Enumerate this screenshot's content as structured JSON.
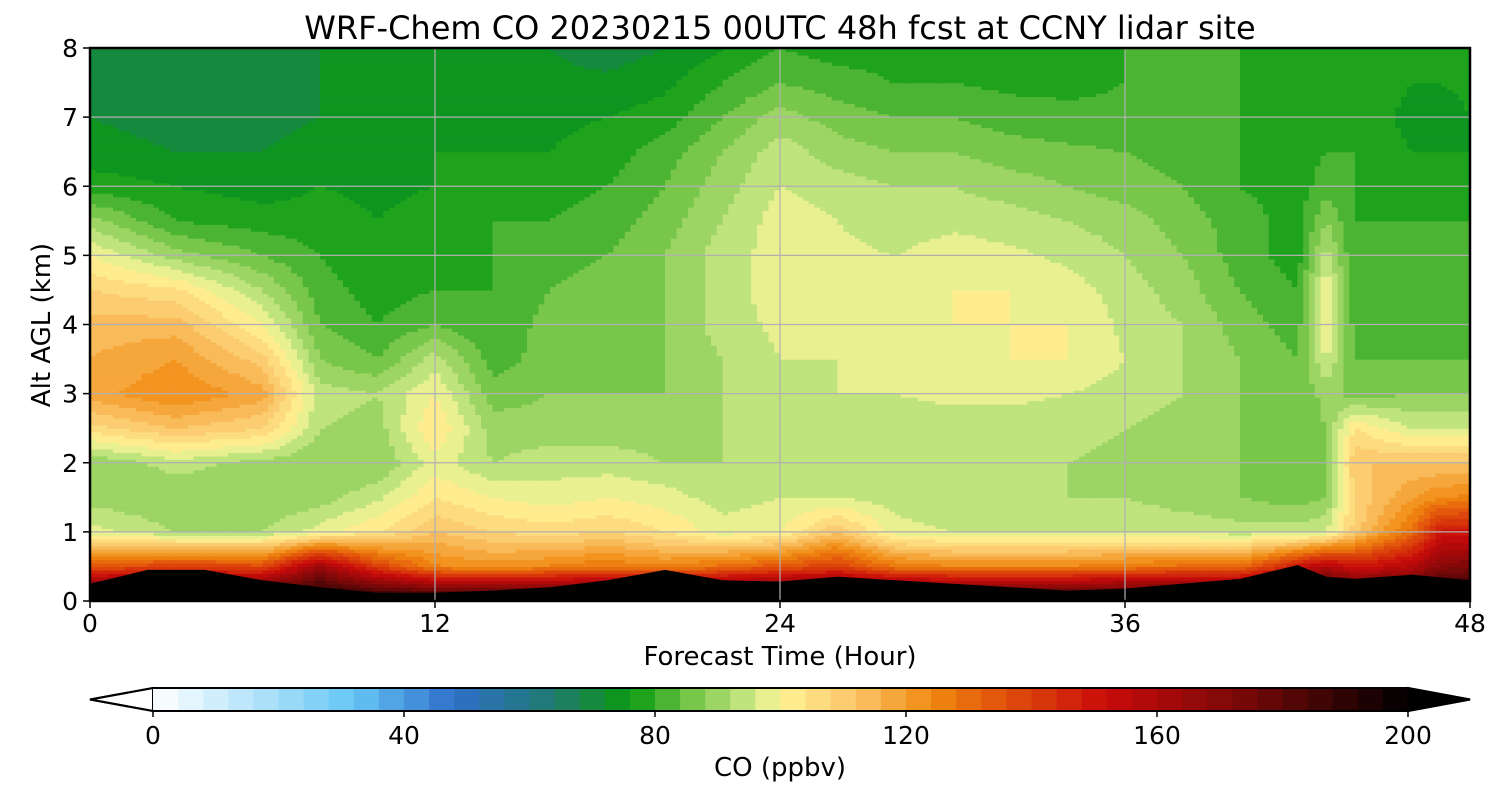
{
  "chart_data": {
    "type": "heatmap",
    "title": "WRF-Chem CO  20230215 00UTC 48h fcst at CCNY lidar site",
    "xlabel": "Forecast Time (Hour)",
    "ylabel": "Alt AGL (km)",
    "xlim": [
      0,
      48
    ],
    "ylim": [
      0,
      8
    ],
    "x_ticks": [
      "0",
      "12",
      "24",
      "36",
      "48"
    ],
    "x_tick_values": [
      0,
      12,
      24,
      36,
      48
    ],
    "y_ticks": [
      "0",
      "1",
      "2",
      "3",
      "4",
      "5",
      "6",
      "7",
      "8"
    ],
    "y_tick_values": [
      0,
      1,
      2,
      3,
      4,
      5,
      6,
      7,
      8
    ],
    "grid": true,
    "colorbar": {
      "label": "CO  (ppbv)",
      "min": 0,
      "max": 200,
      "ticks": [
        "0",
        "40",
        "80",
        "120",
        "160",
        "200"
      ],
      "tick_values": [
        0,
        40,
        80,
        120,
        160,
        200
      ],
      "extend": "both",
      "colors": [
        "#ffffff",
        "#b6e4fa",
        "#66c6f5",
        "#2f6fc9",
        "#1f7a6e",
        "#0a9a10",
        "#78c64a",
        "#d2eb8a",
        "#fff495",
        "#fbc468",
        "#f08a10",
        "#e04e0a",
        "#c80a0a",
        "#6e0808",
        "#000000"
      ],
      "color_stops": [
        0,
        16,
        32,
        48,
        64,
        76,
        86,
        96,
        100,
        112,
        124,
        136,
        152,
        176,
        200
      ]
    },
    "surface_layer_top_km": [
      [
        0,
        0.25
      ],
      [
        2,
        0.45
      ],
      [
        4,
        0.45
      ],
      [
        6,
        0.3
      ],
      [
        8,
        0.2
      ],
      [
        10,
        0.12
      ],
      [
        12,
        0.12
      ],
      [
        14,
        0.15
      ],
      [
        16,
        0.2
      ],
      [
        18,
        0.3
      ],
      [
        20,
        0.45
      ],
      [
        22,
        0.3
      ],
      [
        24,
        0.28
      ],
      [
        26,
        0.35
      ],
      [
        28,
        0.3
      ],
      [
        30,
        0.25
      ],
      [
        32,
        0.2
      ],
      [
        34,
        0.15
      ],
      [
        36,
        0.18
      ],
      [
        38,
        0.25
      ],
      [
        40,
        0.32
      ],
      [
        42,
        0.52
      ],
      [
        43,
        0.35
      ],
      [
        44,
        0.32
      ],
      [
        46,
        0.38
      ],
      [
        48,
        0.3
      ]
    ],
    "z_km": [
      0.0,
      0.5,
      1.0,
      1.5,
      2.0,
      2.5,
      3.0,
      3.5,
      4.0,
      4.5,
      5.0,
      5.5,
      6.0,
      6.5,
      7.0,
      7.5,
      8.0
    ],
    "series": [
      {
        "hour": 0,
        "co_ppbv": [
          200,
          135,
          98,
          90,
          88,
          106,
          118,
          116,
          114,
          108,
          100,
          90,
          78,
          74,
          72,
          72,
          72
        ]
      },
      {
        "hour": 3,
        "co_ppbv": [
          200,
          140,
          92,
          88,
          94,
          112,
          124,
          120,
          114,
          105,
          90,
          80,
          76,
          72,
          70,
          70,
          70
        ]
      },
      {
        "hour": 6,
        "co_ppbv": [
          200,
          138,
          92,
          88,
          90,
          108,
          118,
          110,
          100,
          92,
          84,
          78,
          74,
          72,
          70,
          70,
          70
        ]
      },
      {
        "hour": 8,
        "co_ppbv": [
          200,
          165,
          98,
          90,
          88,
          92,
          94,
          88,
          84,
          82,
          80,
          78,
          76,
          74,
          72,
          72,
          72
        ]
      },
      {
        "hour": 10,
        "co_ppbv": [
          200,
          140,
          104,
          95,
          88,
          90,
          92,
          84,
          80,
          78,
          76,
          76,
          75,
          74,
          73,
          73,
          73
        ]
      },
      {
        "hour": 12,
        "co_ppbv": [
          200,
          125,
          112,
          104,
          98,
          104,
          100,
          94,
          84,
          80,
          78,
          78,
          76,
          76,
          76,
          76,
          76
        ]
      },
      {
        "hour": 14,
        "co_ppbv": [
          200,
          122,
          108,
          100,
          92,
          90,
          86,
          82,
          80,
          80,
          80,
          80,
          78,
          76,
          75,
          74,
          74
        ]
      },
      {
        "hour": 16,
        "co_ppbv": [
          200,
          125,
          106,
          98,
          94,
          90,
          88,
          86,
          86,
          84,
          82,
          80,
          78,
          76,
          75,
          73,
          72
        ]
      },
      {
        "hour": 18,
        "co_ppbv": [
          200,
          128,
          108,
          100,
          94,
          90,
          88,
          86,
          86,
          86,
          84,
          82,
          80,
          78,
          76,
          73,
          70
        ]
      },
      {
        "hour": 20,
        "co_ppbv": [
          200,
          125,
          104,
          98,
          92,
          90,
          88,
          88,
          88,
          88,
          88,
          86,
          84,
          82,
          78,
          75,
          72
        ]
      },
      {
        "hour": 22,
        "co_ppbv": [
          200,
          130,
          98,
          94,
          92,
          92,
          92,
          92,
          94,
          94,
          94,
          92,
          90,
          88,
          84,
          80,
          76
        ]
      },
      {
        "hour": 24,
        "co_ppbv": [
          200,
          135,
          100,
          96,
          92,
          94,
          95,
          96,
          97,
          98,
          98,
          98,
          96,
          94,
          90,
          84,
          80
        ]
      },
      {
        "hour": 26,
        "co_ppbv": [
          200,
          140,
          112,
          96,
          92,
          94,
          96,
          96,
          97,
          97,
          97,
          96,
          94,
          90,
          86,
          82,
          78
        ]
      },
      {
        "hour": 28,
        "co_ppbv": [
          200,
          128,
          98,
          94,
          92,
          94,
          96,
          97,
          98,
          98,
          96,
          94,
          92,
          88,
          84,
          80,
          78
        ]
      },
      {
        "hour": 30,
        "co_ppbv": [
          200,
          125,
          96,
          92,
          92,
          94,
          97,
          99,
          100,
          100,
          98,
          95,
          92,
          88,
          84,
          80,
          78
        ]
      },
      {
        "hour": 32,
        "co_ppbv": [
          200,
          125,
          96,
          92,
          92,
          94,
          97,
          100,
          100,
          100,
          97,
          94,
          90,
          86,
          82,
          79,
          77
        ]
      },
      {
        "hour": 34,
        "co_ppbv": [
          200,
          125,
          96,
          92,
          92,
          94,
          96,
          100,
          100,
          98,
          95,
          92,
          88,
          85,
          81,
          79,
          78
        ]
      },
      {
        "hour": 36,
        "co_ppbv": [
          200,
          128,
          96,
          92,
          90,
          92,
          94,
          96,
          95,
          94,
          92,
          90,
          86,
          84,
          81,
          80,
          80
        ]
      },
      {
        "hour": 38,
        "co_ppbv": [
          200,
          130,
          95,
          90,
          88,
          90,
          92,
          92,
          92,
          90,
          88,
          86,
          84,
          82,
          80,
          80,
          80
        ]
      },
      {
        "hour": 40,
        "co_ppbv": [
          200,
          130,
          94,
          88,
          88,
          88,
          88,
          88,
          86,
          84,
          82,
          82,
          80,
          80,
          80,
          80,
          80
        ]
      },
      {
        "hour": 42,
        "co_ppbv": [
          200,
          150,
          94,
          86,
          84,
          84,
          84,
          84,
          82,
          80,
          78,
          78,
          78,
          78,
          78,
          78,
          78
        ]
      },
      {
        "hour": 43,
        "co_ppbv": [
          200,
          160,
          96,
          88,
          86,
          88,
          90,
          96,
          102,
          100,
          94,
          88,
          82,
          80,
          78,
          78,
          78
        ]
      },
      {
        "hour": 44,
        "co_ppbv": [
          200,
          150,
          110,
          108,
          112,
          104,
          86,
          84,
          82,
          80,
          80,
          80,
          80,
          80,
          80,
          80,
          80
        ]
      },
      {
        "hour": 46,
        "co_ppbv": [
          200,
          158,
          130,
          120,
          112,
          96,
          88,
          84,
          82,
          82,
          82,
          80,
          78,
          76,
          74,
          76,
          78
        ]
      },
      {
        "hour": 47,
        "co_ppbv": [
          200,
          170,
          150,
          124,
          112,
          96,
          88,
          84,
          82,
          82,
          82,
          80,
          78,
          76,
          74,
          76,
          78
        ]
      },
      {
        "hour": 48,
        "co_ppbv": [
          200,
          172,
          150,
          125,
          112,
          96,
          88,
          84,
          82,
          82,
          82,
          80,
          78,
          76,
          76,
          77,
          78
        ]
      }
    ]
  }
}
